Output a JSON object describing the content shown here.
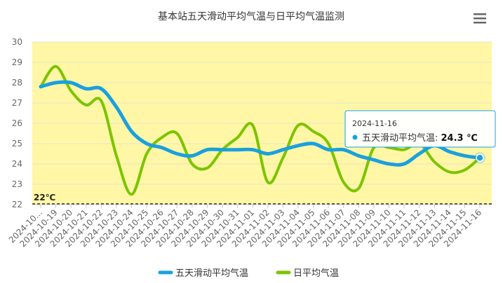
{
  "menu": {
    "icon": "hamburger-menu-icon"
  },
  "chart_data": {
    "type": "line",
    "title": "基本站五天滑动平均气温与日平均气温监测",
    "categories": [
      "2024-10...",
      "2024-10-19",
      "2024-10-20",
      "2024-10-21",
      "2024-10-22",
      "2024-10-23",
      "2024-10-24",
      "2024-10-25",
      "2024-10-26",
      "2024-10-27",
      "2024-10-28",
      "2024-10-29",
      "2024-10-30",
      "2024-10-31",
      "2024-11-01",
      "2024-11-02",
      "2024-11-03",
      "2024-11-04",
      "2024-11-05",
      "2024-11-06",
      "2024-11-07",
      "2024-11-08",
      "2024-11-09",
      "2024-11-10",
      "2024-11-11",
      "2024-11-12",
      "2024-11-13",
      "2024-11-14",
      "2024-11-15",
      "2024-11-16"
    ],
    "ylim": [
      22,
      30
    ],
    "yticks": [
      22,
      23,
      24,
      25,
      26,
      27,
      28,
      29,
      30
    ],
    "grid": true,
    "legend_position": "bottom",
    "series": [
      {
        "name": "五天滑动平均气温",
        "color": "#1aa0e0",
        "values": [
          27.8,
          28.0,
          28.0,
          27.7,
          27.7,
          26.8,
          25.6,
          25.0,
          24.8,
          24.5,
          24.4,
          24.7,
          24.7,
          24.7,
          24.7,
          24.5,
          24.7,
          24.9,
          25.0,
          24.7,
          24.7,
          24.4,
          24.2,
          24.0,
          24.0,
          24.5,
          24.9,
          24.6,
          24.4,
          24.3
        ]
      },
      {
        "name": "日平均气温",
        "color": "#7cc400",
        "values": [
          27.8,
          28.8,
          27.6,
          26.9,
          27.1,
          24.4,
          22.5,
          24.5,
          25.3,
          25.5,
          24.0,
          23.8,
          24.7,
          25.3,
          25.9,
          23.1,
          24.3,
          25.9,
          25.6,
          25.0,
          23.1,
          22.8,
          24.8,
          24.8,
          24.7,
          25.0,
          24.1,
          23.6,
          23.7,
          24.3
        ]
      }
    ],
    "threshold": {
      "value": 22,
      "label": "22℃"
    },
    "tooltip": {
      "date": "2024-11-16",
      "series_label": "五天滑动平均气温: ",
      "value_text": "24.3 ℃",
      "series_index": 0,
      "point_index": 29
    }
  }
}
